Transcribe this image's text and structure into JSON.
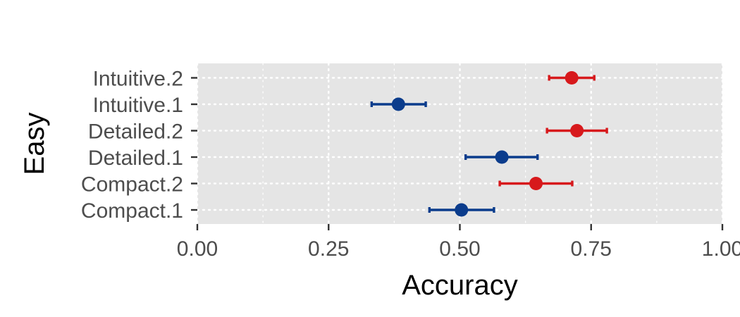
{
  "chart_data": {
    "type": "scatter",
    "xlabel": "Accuracy",
    "ylabel": "Easy",
    "xlim": [
      0,
      1
    ],
    "x_ticks": [
      "0.00",
      "0.25",
      "0.50",
      "0.75",
      "1.00"
    ],
    "x_tick_values": [
      0,
      0.25,
      0.5,
      0.75,
      1
    ],
    "categories": [
      "Compact.1",
      "Compact.2",
      "Detailed.1",
      "Detailed.2",
      "Intuitive.1",
      "Intuitive.2"
    ],
    "grid": true,
    "legend": "none",
    "colors": {
      "odd": "#0b3c8c",
      "even": "#d7191c",
      "panel": "#e5e5e5",
      "grid": "#ffffff"
    },
    "points": [
      {
        "label": "Compact.1",
        "value": 0.503,
        "low": 0.442,
        "high": 0.565,
        "group": "odd"
      },
      {
        "label": "Compact.2",
        "value": 0.645,
        "low": 0.576,
        "high": 0.714,
        "group": "even"
      },
      {
        "label": "Detailed.1",
        "value": 0.58,
        "low": 0.511,
        "high": 0.648,
        "group": "odd"
      },
      {
        "label": "Detailed.2",
        "value": 0.723,
        "low": 0.666,
        "high": 0.78,
        "group": "even"
      },
      {
        "label": "Intuitive.1",
        "value": 0.383,
        "low": 0.332,
        "high": 0.435,
        "group": "odd"
      },
      {
        "label": "Intuitive.2",
        "value": 0.713,
        "low": 0.67,
        "high": 0.756,
        "group": "even"
      }
    ]
  }
}
